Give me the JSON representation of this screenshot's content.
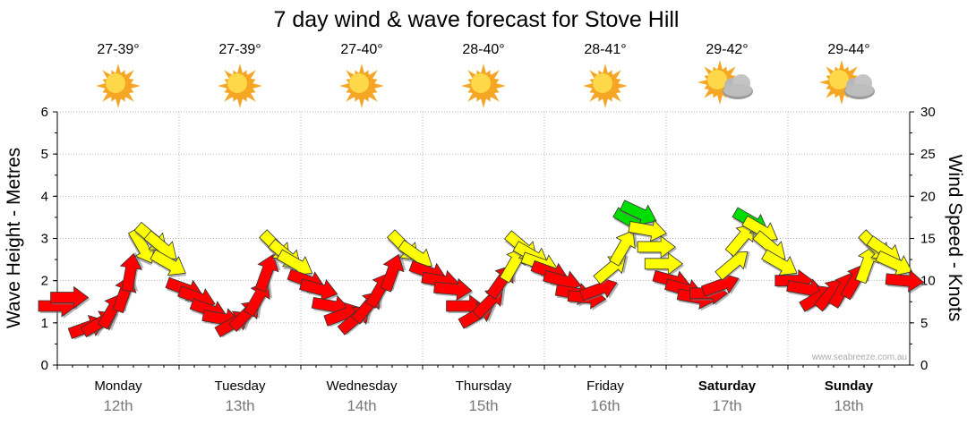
{
  "chart_data": {
    "type": "line",
    "title": "7 day wind & wave forecast for Stove Hill",
    "ylabel": "Wave Height - Metres",
    "y2label": "Wind Speed - Knots",
    "ylim": [
      0,
      6
    ],
    "y2lim": [
      0,
      30
    ],
    "yticks": [
      "0",
      "1",
      "2",
      "3",
      "4",
      "5",
      "6"
    ],
    "y2ticks": [
      "0",
      "5",
      "10",
      "15",
      "20",
      "25",
      "30"
    ],
    "credit": "www.seabreeze.com.au",
    "days": [
      {
        "name": "Monday",
        "date": "12th",
        "temp": "27-39°",
        "icon": "sun-icon",
        "bold": false
      },
      {
        "name": "Tuesday",
        "date": "13th",
        "temp": "27-39°",
        "icon": "sun-icon",
        "bold": false
      },
      {
        "name": "Wednesday",
        "date": "14th",
        "temp": "27-40°",
        "icon": "sun-icon",
        "bold": false
      },
      {
        "name": "Thursday",
        "date": "15th",
        "temp": "28-40°",
        "icon": "sun-icon",
        "bold": false
      },
      {
        "name": "Friday",
        "date": "16th",
        "temp": "28-41°",
        "icon": "sun-icon",
        "bold": false
      },
      {
        "name": "Saturday",
        "date": "17th",
        "temp": "29-42°",
        "icon": "partly-cloudy-icon",
        "bold": true
      },
      {
        "name": "Sunday",
        "date": "18th",
        "temp": "29-44°",
        "icon": "partly-cloudy-icon",
        "bold": true
      }
    ],
    "series": [
      {
        "name": "Wind Speed (knots)",
        "colors": {
          "low": "#ff0000",
          "mid": "#ffff00",
          "high": "#00dd00"
        },
        "points": [
          {
            "t": 0.0,
            "v": 7.0,
            "dir": 0
          },
          {
            "t": 0.1,
            "v": 8.0,
            "dir": 0
          },
          {
            "t": 0.25,
            "v": 4.5,
            "dir": -20
          },
          {
            "t": 0.35,
            "v": 5.0,
            "dir": -30
          },
          {
            "t": 0.45,
            "v": 6.5,
            "dir": -60
          },
          {
            "t": 0.55,
            "v": 8.5,
            "dir": -70
          },
          {
            "t": 0.6,
            "v": 11.0,
            "dir": -80
          },
          {
            "t": 0.7,
            "v": 14.0,
            "dir": 60
          },
          {
            "t": 0.78,
            "v": 15.0,
            "dir": 40
          },
          {
            "t": 0.86,
            "v": 14.0,
            "dir": 40
          },
          {
            "t": 0.92,
            "v": 12.0,
            "dir": 30
          },
          {
            "t": 1.05,
            "v": 9.0,
            "dir": 20
          },
          {
            "t": 1.15,
            "v": 8.0,
            "dir": 20
          },
          {
            "t": 1.25,
            "v": 6.5,
            "dir": 20
          },
          {
            "t": 1.35,
            "v": 5.5,
            "dir": 10
          },
          {
            "t": 1.45,
            "v": 5.0,
            "dir": -30
          },
          {
            "t": 1.55,
            "v": 6.0,
            "dir": -45
          },
          {
            "t": 1.65,
            "v": 8.0,
            "dir": -60
          },
          {
            "t": 1.72,
            "v": 11.0,
            "dir": -70
          },
          {
            "t": 1.8,
            "v": 14.0,
            "dir": 45
          },
          {
            "t": 1.88,
            "v": 13.0,
            "dir": 40
          },
          {
            "t": 1.96,
            "v": 12.0,
            "dir": 30
          },
          {
            "t": 2.05,
            "v": 10.0,
            "dir": 20
          },
          {
            "t": 2.15,
            "v": 9.0,
            "dir": 15
          },
          {
            "t": 2.25,
            "v": 7.0,
            "dir": 10
          },
          {
            "t": 2.35,
            "v": 6.0,
            "dir": -20
          },
          {
            "t": 2.45,
            "v": 5.5,
            "dir": -40
          },
          {
            "t": 2.55,
            "v": 7.0,
            "dir": -50
          },
          {
            "t": 2.65,
            "v": 9.0,
            "dir": -60
          },
          {
            "t": 2.75,
            "v": 11.0,
            "dir": -70
          },
          {
            "t": 2.85,
            "v": 14.0,
            "dir": 45
          },
          {
            "t": 2.95,
            "v": 13.0,
            "dir": 35
          },
          {
            "t": 3.05,
            "v": 11.0,
            "dir": 20
          },
          {
            "t": 3.15,
            "v": 10.0,
            "dir": 10
          },
          {
            "t": 3.25,
            "v": 9.0,
            "dir": 5
          },
          {
            "t": 3.35,
            "v": 7.0,
            "dir": 0
          },
          {
            "t": 3.45,
            "v": 6.0,
            "dir": -30
          },
          {
            "t": 3.55,
            "v": 7.5,
            "dir": -45
          },
          {
            "t": 3.65,
            "v": 10.0,
            "dir": -55
          },
          {
            "t": 3.75,
            "v": 12.0,
            "dir": -60
          },
          {
            "t": 3.82,
            "v": 14.0,
            "dir": 40
          },
          {
            "t": 3.9,
            "v": 13.0,
            "dir": 30
          },
          {
            "t": 3.97,
            "v": 12.0,
            "dir": 20
          },
          {
            "t": 4.05,
            "v": 11.0,
            "dir": 20
          },
          {
            "t": 4.15,
            "v": 10.0,
            "dir": 15
          },
          {
            "t": 4.25,
            "v": 8.5,
            "dir": 10
          },
          {
            "t": 4.35,
            "v": 8.0,
            "dir": 5
          },
          {
            "t": 4.45,
            "v": 9.0,
            "dir": -20
          },
          {
            "t": 4.55,
            "v": 11.5,
            "dir": -40
          },
          {
            "t": 4.65,
            "v": 14.0,
            "dir": -60
          },
          {
            "t": 4.72,
            "v": 17.0,
            "dir": 30
          },
          {
            "t": 4.78,
            "v": 18.0,
            "dir": 25
          },
          {
            "t": 4.85,
            "v": 16.0,
            "dir": 10
          },
          {
            "t": 4.92,
            "v": 14.0,
            "dir": 0
          },
          {
            "t": 4.98,
            "v": 12.0,
            "dir": 0
          },
          {
            "t": 5.05,
            "v": 10.0,
            "dir": 15
          },
          {
            "t": 5.15,
            "v": 9.0,
            "dir": 15
          },
          {
            "t": 5.25,
            "v": 8.0,
            "dir": 10
          },
          {
            "t": 5.35,
            "v": 8.5,
            "dir": 0
          },
          {
            "t": 5.45,
            "v": 9.5,
            "dir": -20
          },
          {
            "t": 5.55,
            "v": 12.0,
            "dir": -40
          },
          {
            "t": 5.62,
            "v": 15.0,
            "dir": -50
          },
          {
            "t": 5.7,
            "v": 17.0,
            "dir": 30
          },
          {
            "t": 5.78,
            "v": 16.0,
            "dir": 30
          },
          {
            "t": 5.86,
            "v": 14.0,
            "dir": 40
          },
          {
            "t": 5.94,
            "v": 12.0,
            "dir": 30
          },
          {
            "t": 6.05,
            "v": 10.0,
            "dir": 0
          },
          {
            "t": 6.15,
            "v": 9.0,
            "dir": 10
          },
          {
            "t": 6.25,
            "v": 8.0,
            "dir": -30
          },
          {
            "t": 6.35,
            "v": 8.5,
            "dir": -50
          },
          {
            "t": 6.45,
            "v": 9.0,
            "dir": -60
          },
          {
            "t": 6.55,
            "v": 10.0,
            "dir": -60
          },
          {
            "t": 6.65,
            "v": 12.0,
            "dir": -70
          },
          {
            "t": 6.72,
            "v": 14.0,
            "dir": 45
          },
          {
            "t": 6.8,
            "v": 13.5,
            "dir": 35
          },
          {
            "t": 6.88,
            "v": 12.0,
            "dir": 25
          },
          {
            "t": 6.96,
            "v": 10.0,
            "dir": 5
          }
        ]
      }
    ]
  }
}
